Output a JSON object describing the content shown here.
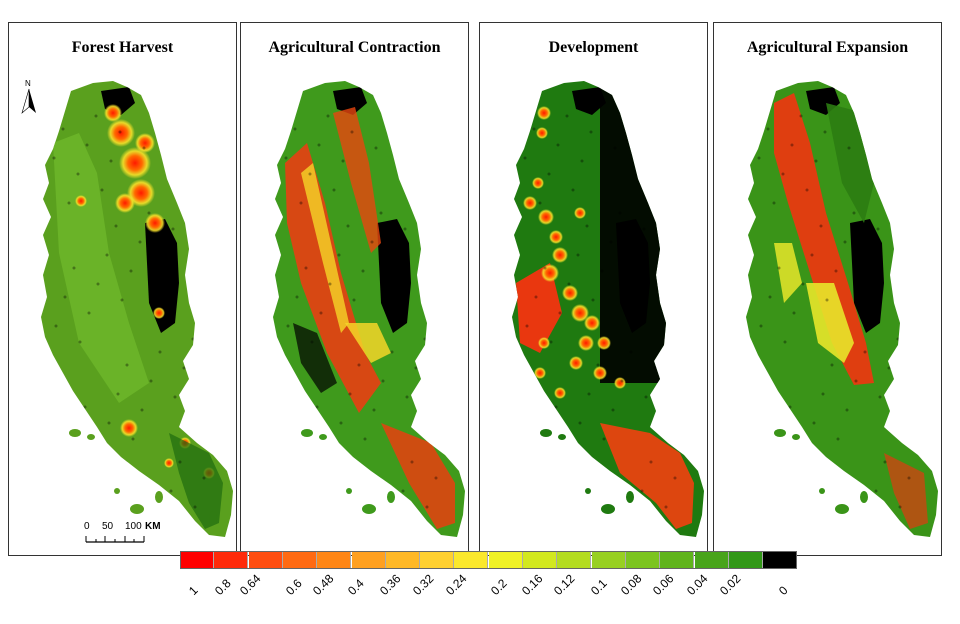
{
  "panels": [
    {
      "title": "Forest Harvest",
      "scheme": "harvest"
    },
    {
      "title": "Agricultural Contraction",
      "scheme": "contraction"
    },
    {
      "title": "Development",
      "scheme": "development"
    },
    {
      "title": "Agricultural Expansion",
      "scheme": "expansion"
    }
  ],
  "north_arrow": {
    "label": "N"
  },
  "scale_bar": {
    "ticks": [
      "0",
      "50",
      "100"
    ],
    "unit": "KM"
  },
  "legend": {
    "labels": [
      "1",
      "0.8",
      "0.64",
      "0.6",
      "0.48",
      "0.4",
      "0.36",
      "0.32",
      "0.24",
      "0.2",
      "0.16",
      "0.12",
      "0.1",
      "0.08",
      "0.06",
      "0.04",
      "0.02",
      "0"
    ],
    "colors": [
      "#ff0000",
      "#ff2a0a",
      "#ff4d10",
      "#ff6a12",
      "#ff8615",
      "#ffa020",
      "#ffb826",
      "#ffd030",
      "#fbe82c",
      "#f0f225",
      "#d2e81f",
      "#b4dc20",
      "#98d022",
      "#7cc420",
      "#60b41c",
      "#48a41a",
      "#329818",
      "#000000"
    ]
  }
}
